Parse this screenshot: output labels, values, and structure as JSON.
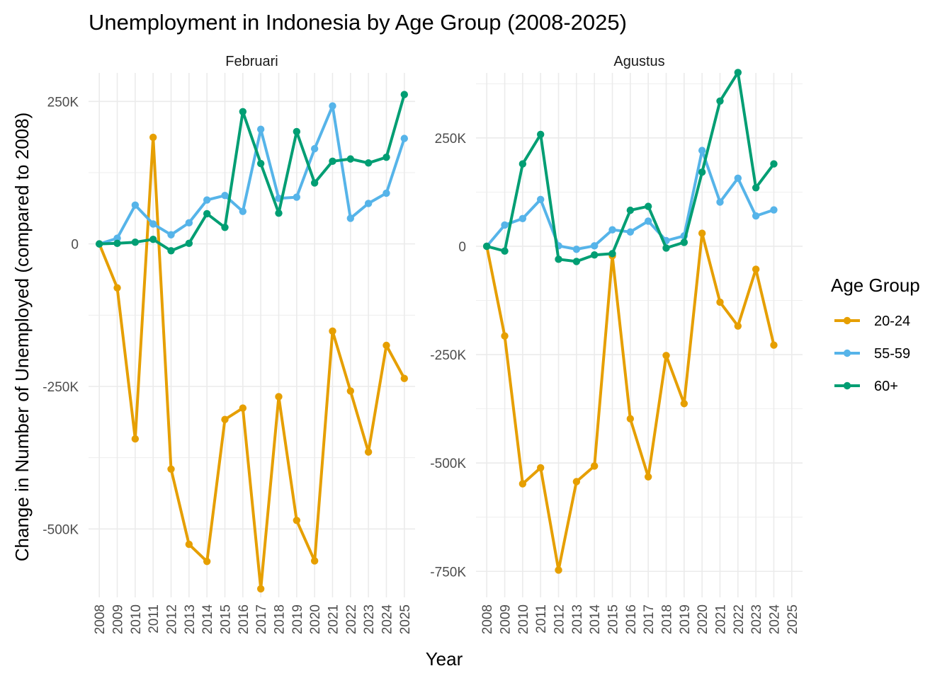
{
  "chart_data": {
    "type": "line",
    "title": "Unemployment in Indonesia by Age Group (2008-2025)",
    "xlabel": "Year",
    "ylabel": "Change in Number of Unemployed (compared to 2008)",
    "legend": {
      "title": "Age Group",
      "placement": "right",
      "entries": [
        {
          "name": "20-24",
          "color": "#E69F00"
        },
        {
          "name": "55-59",
          "color": "#56B4E9"
        },
        {
          "name": "60+",
          "color": "#009E73"
        }
      ]
    },
    "grid": true,
    "x_ticks": [
      "2008",
      "2009",
      "2010",
      "2011",
      "2012",
      "2013",
      "2014",
      "2015",
      "2016",
      "2017",
      "2018",
      "2019",
      "2020",
      "2021",
      "2022",
      "2023",
      "2024",
      "2025"
    ],
    "panels": [
      {
        "label": "Februari",
        "ylim": [
          -620000,
          300000
        ],
        "y_ticks": [
          {
            "value": 250000,
            "label": "250K"
          },
          {
            "value": 0,
            "label": "0"
          },
          {
            "value": -250000,
            "label": "-250K"
          },
          {
            "value": -500000,
            "label": "-500K"
          }
        ],
        "series": [
          {
            "name": "20-24",
            "color": "#E69F00",
            "x": [
              2008,
              2009,
              2010,
              2011,
              2012,
              2013,
              2014,
              2015,
              2016,
              2017,
              2018,
              2019,
              2020,
              2021,
              2022,
              2023,
              2024,
              2025
            ],
            "values": [
              0,
              -77000,
              -342000,
              187000,
              -395000,
              -527000,
              -557000,
              -308000,
              -288000,
              -605000,
              -268000,
              -485000,
              -556000,
              -153000,
              -258000,
              -365000,
              -178000,
              -236000
            ]
          },
          {
            "name": "55-59",
            "color": "#56B4E9",
            "x": [
              2008,
              2009,
              2010,
              2011,
              2012,
              2013,
              2014,
              2015,
              2016,
              2017,
              2018,
              2019,
              2020,
              2021,
              2022,
              2023,
              2024,
              2025
            ],
            "values": [
              0,
              10000,
              68000,
              35000,
              16000,
              37000,
              77000,
              85000,
              57000,
              201000,
              80000,
              82000,
              167000,
              242000,
              45000,
              71000,
              89000,
              185000
            ]
          },
          {
            "name": "60+",
            "color": "#009E73",
            "x": [
              2008,
              2009,
              2010,
              2011,
              2012,
              2013,
              2014,
              2015,
              2016,
              2017,
              2018,
              2019,
              2020,
              2021,
              2022,
              2023,
              2024,
              2025
            ],
            "values": [
              0,
              1000,
              3000,
              8000,
              -12000,
              1000,
              53000,
              29000,
              232000,
              141000,
              54000,
              197000,
              107000,
              145000,
              149000,
              142000,
              152000,
              262000
            ]
          }
        ]
      },
      {
        "label": "Agustus",
        "ylim": [
          -810000,
          400000
        ],
        "y_ticks": [
          {
            "value": 250000,
            "label": "250K"
          },
          {
            "value": 0,
            "label": "0"
          },
          {
            "value": -250000,
            "label": "-250K"
          },
          {
            "value": -500000,
            "label": "-500K"
          },
          {
            "value": -750000,
            "label": "-750K"
          }
        ],
        "series": [
          {
            "name": "20-24",
            "color": "#E69F00",
            "x": [
              2008,
              2009,
              2010,
              2011,
              2012,
              2013,
              2014,
              2015,
              2016,
              2017,
              2018,
              2019,
              2020,
              2021,
              2022,
              2023,
              2024
            ],
            "values": [
              0,
              -207000,
              -548000,
              -511000,
              -747000,
              -543000,
              -507000,
              -22000,
              -398000,
              -532000,
              -252000,
              -363000,
              30000,
              -129000,
              -184000,
              -53000,
              -228000
            ]
          },
          {
            "name": "55-59",
            "color": "#56B4E9",
            "x": [
              2008,
              2009,
              2010,
              2011,
              2012,
              2013,
              2014,
              2015,
              2016,
              2017,
              2018,
              2019,
              2020,
              2021,
              2022,
              2023,
              2024
            ],
            "values": [
              0,
              49000,
              64000,
              108000,
              1000,
              -7000,
              1000,
              38000,
              33000,
              58000,
              13000,
              24000,
              221000,
              102000,
              157000,
              70000,
              84000
            ]
          },
          {
            "name": "60+",
            "color": "#009E73",
            "x": [
              2008,
              2009,
              2010,
              2011,
              2012,
              2013,
              2014,
              2015,
              2016,
              2017,
              2018,
              2019,
              2020,
              2021,
              2022,
              2023,
              2024
            ],
            "values": [
              0,
              -11000,
              190000,
              258000,
              -30000,
              -35000,
              -20000,
              -17000,
              83000,
              92000,
              -4000,
              9000,
              171000,
              335000,
              401000,
              135000,
              190000
            ]
          }
        ]
      }
    ]
  }
}
